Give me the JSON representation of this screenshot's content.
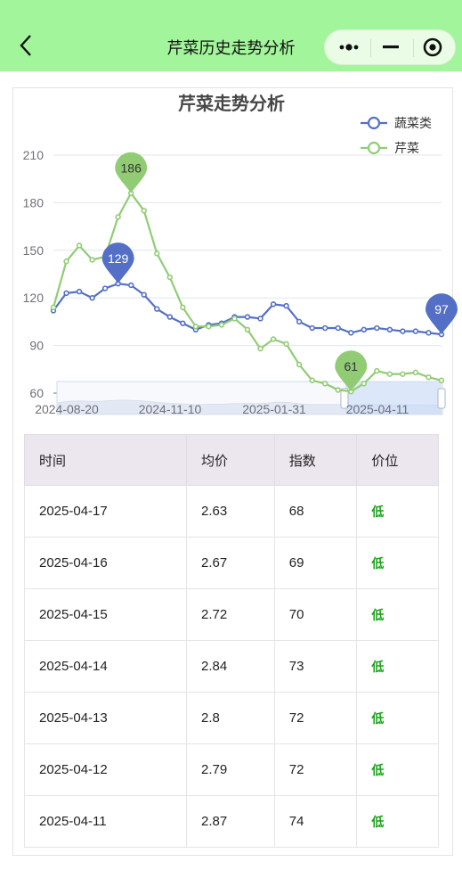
{
  "nav": {
    "title": "芹菜历史走势分析"
  },
  "colors": {
    "nav_bg": "#a3f59b",
    "veg": "#5470c6",
    "celery": "#91cc75"
  },
  "chart_data": {
    "type": "line",
    "title": "芹菜走势分析",
    "legend_position": "top-right",
    "x_ticks": [
      "2024-08-20",
      "2024-11-10",
      "2025-01-31",
      "2025-04-11"
    ],
    "ylim": [
      60,
      210
    ],
    "y_ticks": [
      60,
      90,
      120,
      150,
      180,
      210
    ],
    "grid": true,
    "series": [
      {
        "name": "蔬菜类",
        "color": "#5470c6",
        "values": [
          112,
          123,
          124,
          120,
          126,
          129,
          128,
          122,
          113,
          108,
          104,
          100,
          103,
          104,
          108,
          108,
          107,
          116,
          115,
          105,
          101,
          101,
          101,
          98,
          100,
          101,
          100,
          99,
          99,
          98,
          97
        ]
      },
      {
        "name": "芹菜",
        "color": "#91cc75",
        "values": [
          114,
          143,
          153,
          144,
          146,
          171,
          186,
          175,
          148,
          133,
          114,
          102,
          102,
          103,
          107,
          100,
          88,
          94,
          91,
          78,
          68,
          66,
          62,
          61,
          66,
          74,
          72,
          72,
          73,
          70,
          68
        ]
      }
    ],
    "markers": [
      {
        "label": "129",
        "series": 0,
        "index": 5
      },
      {
        "label": "186",
        "series": 1,
        "index": 6
      },
      {
        "label": "61",
        "series": 1,
        "index": 23
      },
      {
        "label": "97",
        "series": 0,
        "index": 30
      }
    ]
  },
  "table": {
    "headers": [
      "时间",
      "均价",
      "指数",
      "价位"
    ],
    "rows": [
      [
        "2025-04-17",
        "2.63",
        "68",
        "低"
      ],
      [
        "2025-04-16",
        "2.67",
        "69",
        "低"
      ],
      [
        "2025-04-15",
        "2.72",
        "70",
        "低"
      ],
      [
        "2025-04-14",
        "2.84",
        "73",
        "低"
      ],
      [
        "2025-04-13",
        "2.8",
        "72",
        "低"
      ],
      [
        "2025-04-12",
        "2.79",
        "72",
        "低"
      ],
      [
        "2025-04-11",
        "2.87",
        "74",
        "低"
      ]
    ]
  }
}
